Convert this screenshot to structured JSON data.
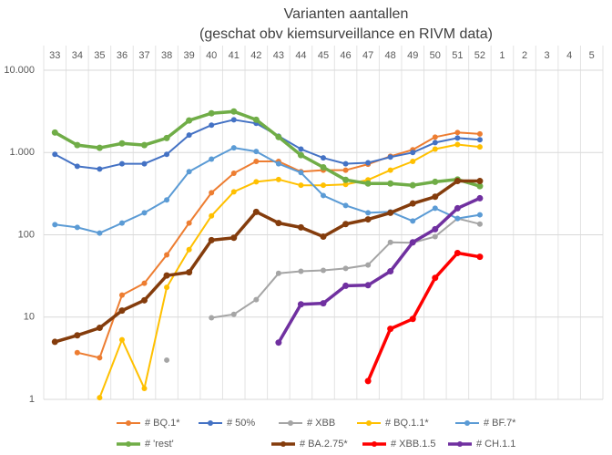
{
  "chart_data": {
    "type": "line",
    "title": "Varianten aantallen",
    "subtitle": "(geschat obv kiemsurveillance en RIVM data)",
    "categories": [
      "33",
      "34",
      "35",
      "36",
      "37",
      "38",
      "39",
      "40",
      "41",
      "42",
      "43",
      "44",
      "45",
      "46",
      "47",
      "48",
      "49",
      "50",
      "51",
      "52",
      "1",
      "2",
      "3",
      "4",
      "5"
    ],
    "log_scale": true,
    "ylim": [
      1,
      10000
    ],
    "yticks": [
      1,
      10,
      100,
      {
        "value": 1000,
        "label": "1.000"
      },
      {
        "value": 10000,
        "label": "10.000"
      }
    ],
    "grid": true,
    "legend": "bottom",
    "series": [
      {
        "name": "# BQ.1*",
        "color": "#ED7D31",
        "line_width": 2,
        "values": [
          null,
          3.7,
          3.2,
          18.5,
          25.8,
          57,
          139,
          324,
          560,
          780,
          780,
          585,
          610,
          610,
          720,
          900,
          1080,
          1540,
          1750,
          1680,
          null,
          null,
          null,
          null,
          null
        ]
      },
      {
        "name": "# 50%",
        "color": "#4472C4",
        "line_width": 2,
        "values": [
          950,
          680,
          630,
          730,
          730,
          950,
          1630,
          2150,
          2500,
          2260,
          1580,
          1100,
          860,
          730,
          750,
          880,
          1000,
          1320,
          1500,
          1430,
          null,
          null,
          null,
          null,
          null
        ]
      },
      {
        "name": "# XBB",
        "color": "#A5A5A5",
        "line_width": 2,
        "values": [
          null,
          null,
          null,
          null,
          null,
          3,
          null,
          9.8,
          10.8,
          16.3,
          34,
          36,
          37,
          39,
          43,
          81,
          80,
          95,
          158,
          135,
          null,
          null,
          null,
          null,
          null
        ]
      },
      {
        "name": "# BQ.1.1*",
        "color": "#FFC000",
        "line_width": 2,
        "values": [
          null,
          null,
          1.05,
          5.3,
          1.36,
          23,
          66,
          170,
          333,
          440,
          470,
          400,
          400,
          410,
          465,
          610,
          780,
          1100,
          1250,
          1170,
          null,
          null,
          null,
          null,
          null
        ]
      },
      {
        "name": "# BF.7*",
        "color": "#5B9BD5",
        "line_width": 2,
        "values": [
          133,
          123,
          105,
          139,
          185,
          265,
          585,
          830,
          1140,
          1030,
          730,
          570,
          300,
          227,
          185,
          190,
          147,
          210,
          158,
          175,
          null,
          null,
          null,
          null,
          null
        ]
      },
      {
        "name": "# 'rest'",
        "color": "#70AD47",
        "line_width": 3.5,
        "values": [
          1750,
          1230,
          1140,
          1290,
          1230,
          1500,
          2450,
          3000,
          3150,
          2500,
          1540,
          930,
          660,
          465,
          420,
          420,
          400,
          440,
          470,
          390,
          null,
          null,
          null,
          null,
          null
        ]
      },
      {
        "name": "# BA.2.75*",
        "color": "#843C0C",
        "line_width": 3.5,
        "values": [
          5,
          6,
          7.4,
          12,
          16,
          32,
          35,
          86,
          92,
          190,
          139,
          123,
          95,
          135,
          154,
          185,
          240,
          290,
          450,
          450,
          null,
          null,
          null,
          null,
          null
        ]
      },
      {
        "name": "# XBB.1.5",
        "color": "#FF0000",
        "line_width": 3.5,
        "values": [
          null,
          null,
          null,
          null,
          null,
          null,
          null,
          null,
          null,
          null,
          null,
          null,
          null,
          null,
          1.67,
          7.2,
          9.5,
          30,
          60,
          54,
          null,
          null,
          null,
          null,
          null
        ]
      },
      {
        "name": "# CH.1.1",
        "color": "#7030A0",
        "line_width": 3.5,
        "values": [
          null,
          null,
          null,
          null,
          null,
          null,
          null,
          null,
          null,
          null,
          4.9,
          14.3,
          14.7,
          24,
          24.4,
          36,
          81,
          117,
          210,
          278,
          null,
          null,
          null,
          null,
          null
        ]
      }
    ]
  }
}
